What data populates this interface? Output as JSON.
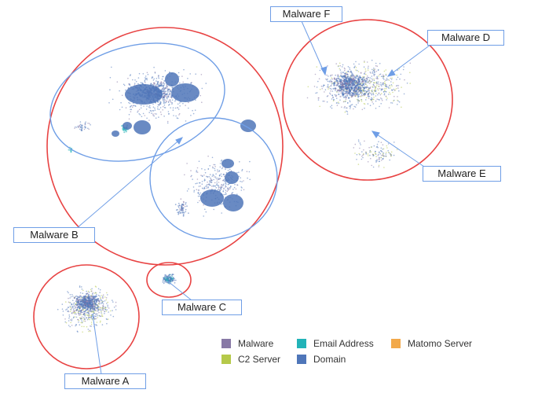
{
  "colors": {
    "cluster_outline": "#e84343",
    "group_outline": "#6f9ee6",
    "malware": "#8879a6",
    "c2_server": "#b5c94a",
    "email_address": "#22b3b8",
    "domain": "#4f76b9",
    "matomo_server": "#f2a94a"
  },
  "callouts": {
    "malware_a": "Malware A",
    "malware_b": "Malware B",
    "malware_c": "Malware C",
    "malware_d": "Malware D",
    "malware_e": "Malware E",
    "malware_f": "Malware F"
  },
  "legend": {
    "malware": "Malware",
    "c2_server": "C2 Server",
    "email_address": "Email Address",
    "domain": "Domain",
    "matomo_server": "Matomo Server"
  }
}
